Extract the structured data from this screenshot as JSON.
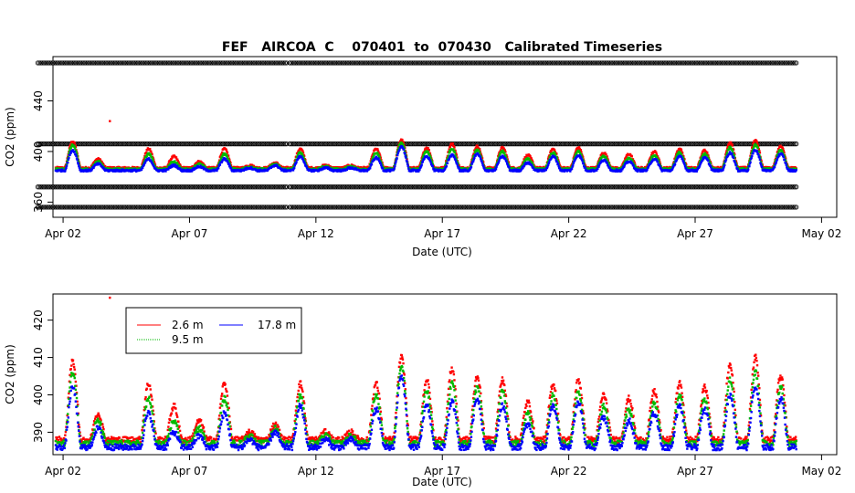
{
  "title": "FEF   AIRCOA  C    070401  to  070430   Calibrated Timeseries",
  "colors": {
    "series_2_6": "#ff0000",
    "series_9_5": "#00bb00",
    "series_17_8": "#0000ff",
    "raw": "#000000"
  },
  "chart_data": [
    {
      "type": "scatter",
      "name": "raw-calibrated-timeseries",
      "title": "FEF   AIRCOA  C    070401  to  070430   Calibrated Timeseries",
      "xlabel": "Date (UTC)",
      "ylabel": "CO2 (ppm)",
      "x_unit": "days since Apr 01 00:00 UTC",
      "xlim": [
        0.6,
        31.6
      ],
      "ylim": [
        348,
        475
      ],
      "x_ticks": [
        1,
        6,
        11,
        16,
        21,
        26,
        31
      ],
      "x_tick_labels": [
        "Apr 02",
        "Apr 07",
        "Apr 12",
        "Apr 17",
        "Apr 22",
        "Apr 27",
        "May 02"
      ],
      "y_ticks": [
        360,
        400,
        440
      ],
      "y_tick_labels": [
        "360",
        "400",
        "440"
      ],
      "reference_bands": [
        {
          "value": 470,
          "x_range": [
            0.0,
            30.0
          ]
        },
        {
          "value": 406,
          "x_range": [
            0.0,
            30.0
          ]
        },
        {
          "value": 372,
          "x_range": [
            0.0,
            30.0
          ]
        },
        {
          "value": 356,
          "x_range": [
            0.0,
            30.0
          ]
        }
      ],
      "outliers": [
        {
          "x": 2.85,
          "y": 424
        }
      ],
      "series_note": "2.6 m (red), 9.5 m (green), 17.8 m (blue) diurnal CO2 cycles ~385-415 ppm"
    },
    {
      "type": "scatter",
      "name": "co2-by-inlet-height",
      "xlabel": "Date (UTC)",
      "ylabel": "CO2 (ppm)",
      "x_unit": "days since Apr 01 00:00 UTC",
      "xlim": [
        0.6,
        31.6
      ],
      "ylim": [
        384,
        427
      ],
      "x_ticks": [
        1,
        6,
        11,
        16,
        21,
        26,
        31
      ],
      "x_tick_labels": [
        "Apr 02",
        "Apr 07",
        "Apr 12",
        "Apr 17",
        "Apr 22",
        "Apr 27",
        "May 02"
      ],
      "y_ticks": [
        390,
        400,
        410,
        420
      ],
      "y_tick_labels": [
        "390",
        "400",
        "410",
        "420"
      ],
      "legend": {
        "position": "top-left",
        "entries": [
          {
            "label": "2.6 m",
            "color": "#ff0000"
          },
          {
            "label": "17.8 m",
            "color": "#0000ff"
          },
          {
            "label": "9.5 m",
            "color": "#00bb00"
          }
        ]
      },
      "series": [
        {
          "name": "17.8 m",
          "color": "#0000ff",
          "baseline": 386,
          "peak_values": [
            387,
            402,
            391,
            386,
            395,
            390,
            389,
            395,
            388,
            390,
            397,
            388,
            388,
            396,
            405,
            397,
            398,
            399,
            397,
            392,
            397,
            398,
            394,
            393,
            395,
            397,
            396,
            400,
            402,
            399,
            386
          ]
        },
        {
          "name": "9.5 m",
          "color": "#00bb00",
          "baseline": 387,
          "peak_values": [
            389,
            406,
            393,
            387,
            399,
            393,
            391,
            399,
            389,
            391,
            400,
            389,
            389,
            400,
            408,
            401,
            403,
            402,
            401,
            395,
            400,
            401,
            397,
            396,
            398,
            400,
            399,
            404,
            406,
            402,
            387
          ]
        },
        {
          "name": "2.6 m",
          "color": "#ff0000",
          "baseline": 388,
          "peak_values": [
            391,
            409,
            395,
            388,
            403,
            397,
            393,
            403,
            390,
            392,
            403,
            390,
            390,
            403,
            410,
            404,
            407,
            405,
            404,
            398,
            403,
            404,
            400,
            399,
            401,
            403,
            402,
            408,
            410,
            405,
            388
          ]
        }
      ],
      "outliers": [
        {
          "x": 2.85,
          "y": 426
        }
      ]
    }
  ]
}
